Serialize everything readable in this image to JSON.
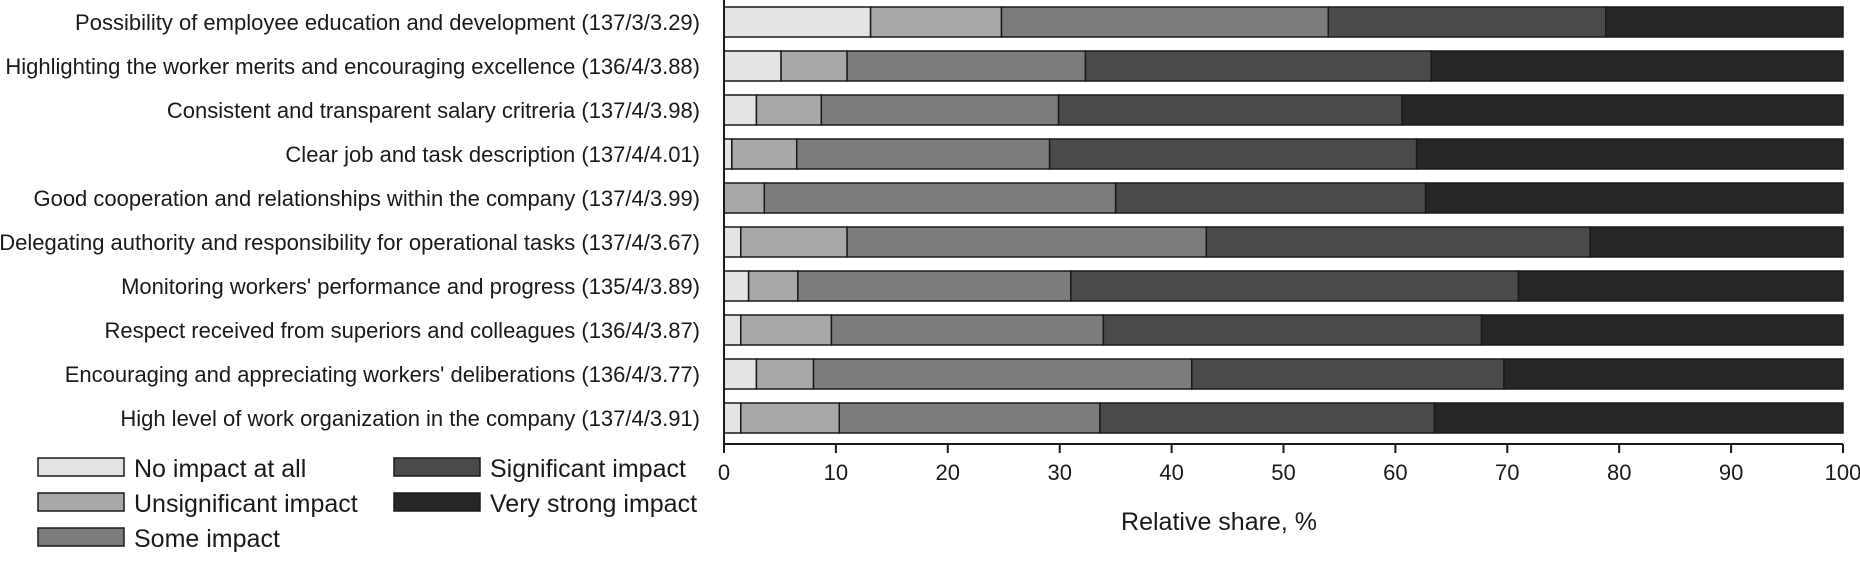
{
  "chart_data": {
    "type": "bar",
    "orientation": "horizontal",
    "stacked": true,
    "title": "",
    "xlabel": "Relative share, %",
    "ylabel": "",
    "xlim": [
      0,
      100
    ],
    "xticks": [
      0,
      10,
      20,
      30,
      40,
      50,
      60,
      70,
      80,
      90,
      100
    ],
    "grid": false,
    "legend_position": "bottom-left",
    "categories": [
      "Possibility of employee education and development (137/3/3.29)",
      "Highlighting the worker merits and encouraging excellence (136/4/3.88)",
      "Consistent and transparent salary critreria (137/4/3.98)",
      "Clear job and task description (137/4/4.01)",
      "Good cooperation and relationships within the company (137/4/3.99)",
      "Delegating authority and responsibility for operational tasks (137/4/3.67)",
      "Monitoring workers' performance and progress (135/4/3.89)",
      "Respect received from superiors and colleagues (136/4/3.87)",
      "Encouraging and appreciating workers' deliberations (136/4/3.77)",
      "High level of work organization in the company (137/4/3.91)"
    ],
    "series": [
      {
        "name": "No impact at all",
        "color": "#e4e4e4",
        "values": [
          13.1,
          5.1,
          2.9,
          0.7,
          0.0,
          1.5,
          2.2,
          1.5,
          2.9,
          1.5
        ]
      },
      {
        "name": "Unsignificant impact",
        "color": "#a8a8a8",
        "values": [
          11.7,
          5.9,
          5.8,
          5.8,
          3.6,
          9.5,
          4.4,
          8.1,
          5.1,
          8.8
        ]
      },
      {
        "name": "Some impact",
        "color": "#7c7c7c",
        "values": [
          29.2,
          21.3,
          21.2,
          22.6,
          31.4,
          32.1,
          24.4,
          24.3,
          33.8,
          23.3
        ]
      },
      {
        "name": "Significant impact",
        "color": "#4a4a4a",
        "values": [
          24.8,
          30.9,
          30.7,
          32.8,
          27.7,
          34.3,
          40.0,
          33.8,
          27.9,
          29.9
        ]
      },
      {
        "name": "Very strong impact",
        "color": "#262626",
        "values": [
          21.2,
          36.8,
          39.4,
          38.1,
          37.3,
          22.6,
          29.0,
          32.3,
          30.3,
          36.5
        ]
      }
    ]
  }
}
